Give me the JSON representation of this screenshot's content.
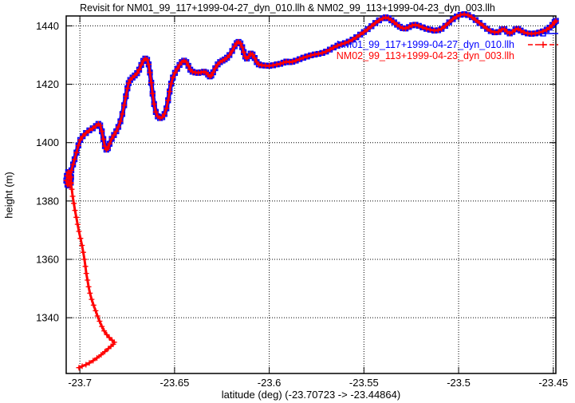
{
  "title": "Revisit for NM01_99_117+1999-04-27_dyn_010.llh & NM02_99_113+1999-04-23_dyn_003.llh",
  "axes": {
    "xlabel": "latitude (deg) (-23.70723 -> -23.44864)",
    "ylabel": "height (m)"
  },
  "legend": {
    "entries": [
      {
        "label": "NM01_99_117+1999-04-27_dyn_010.llh",
        "color": "#0000ff",
        "marker": "square",
        "line": "solid"
      },
      {
        "label": "NM02_99_113+1999-04-23_dyn_003.llh",
        "color": "#ff0000",
        "marker": "plus",
        "line": "dashed"
      }
    ]
  },
  "colors": {
    "series1": "#0000ff",
    "series2": "#ff0000",
    "grid": "#000000",
    "background": "#ffffff"
  },
  "chart_data": {
    "type": "line",
    "title": "Revisit for NM01_99_117+1999-04-27_dyn_010.llh & NM02_99_113+1999-04-23_dyn_003.llh",
    "xlabel": "latitude (deg) (-23.70723 -> -23.44864)",
    "ylabel": "height (m)",
    "xlim": [
      -23.70723,
      -23.44864
    ],
    "ylim": [
      1320.9,
      1443.4
    ],
    "xticks": [
      -23.7,
      -23.65,
      -23.6,
      -23.55,
      -23.5,
      -23.45
    ],
    "xtick_labels": [
      "-23.7",
      "-23.65",
      "-23.6",
      "-23.55",
      "-23.5",
      "-23.45"
    ],
    "yticks": [
      1340,
      1360,
      1380,
      1400,
      1420,
      1440
    ],
    "ytick_labels": [
      "1340",
      "1360",
      "1380",
      "1400",
      "1420",
      "1440"
    ],
    "grid": true,
    "legend_position": "top-right-inside",
    "paths": {
      "main": [
        [
          -23.7072,
          1387.0
        ],
        [
          -23.7066,
          1385.6
        ],
        [
          -23.7056,
          1385.3
        ],
        [
          -23.7048,
          1386.3
        ],
        [
          -23.7046,
          1388.2
        ],
        [
          -23.7052,
          1389.7
        ],
        [
          -23.7062,
          1389.9
        ],
        [
          -23.7069,
          1388.6
        ],
        [
          -23.7058,
          1387.6
        ],
        [
          -23.7045,
          1390.5
        ],
        [
          -23.7036,
          1392.5
        ],
        [
          -23.7028,
          1394.3
        ],
        [
          -23.7018,
          1396.6
        ],
        [
          -23.7008,
          1399.0
        ],
        [
          -23.6998,
          1400.9
        ],
        [
          -23.6985,
          1402.2
        ],
        [
          -23.6968,
          1403.3
        ],
        [
          -23.695,
          1404.2
        ],
        [
          -23.6932,
          1404.9
        ],
        [
          -23.6915,
          1405.7
        ],
        [
          -23.6902,
          1406.4
        ],
        [
          -23.6893,
          1405.9
        ],
        [
          -23.6884,
          1403.9
        ],
        [
          -23.6876,
          1401.2
        ],
        [
          -23.6868,
          1398.8
        ],
        [
          -23.686,
          1397.6
        ],
        [
          -23.6852,
          1398.1
        ],
        [
          -23.6843,
          1399.6
        ],
        [
          -23.6832,
          1401.3
        ],
        [
          -23.682,
          1402.6
        ],
        [
          -23.6808,
          1403.9
        ],
        [
          -23.6797,
          1405.4
        ],
        [
          -23.6786,
          1407.3
        ],
        [
          -23.6776,
          1409.8
        ],
        [
          -23.6766,
          1412.8
        ],
        [
          -23.6757,
          1415.9
        ],
        [
          -23.6749,
          1418.6
        ],
        [
          -23.6742,
          1420.4
        ],
        [
          -23.6734,
          1421.5
        ],
        [
          -23.6722,
          1422.3
        ],
        [
          -23.671,
          1423.0
        ],
        [
          -23.6698,
          1423.8
        ],
        [
          -23.6687,
          1425.0
        ],
        [
          -23.6676,
          1426.6
        ],
        [
          -23.6665,
          1428.0
        ],
        [
          -23.6655,
          1428.8
        ],
        [
          -23.6645,
          1428.4
        ],
        [
          -23.6637,
          1426.8
        ],
        [
          -23.663,
          1424.0
        ],
        [
          -23.6623,
          1420.5
        ],
        [
          -23.6616,
          1416.8
        ],
        [
          -23.6608,
          1413.2
        ],
        [
          -23.6599,
          1410.5
        ],
        [
          -23.6589,
          1409.0
        ],
        [
          -23.6577,
          1408.4
        ],
        [
          -23.6565,
          1408.7
        ],
        [
          -23.6553,
          1409.8
        ],
        [
          -23.6543,
          1411.7
        ],
        [
          -23.6534,
          1414.5
        ],
        [
          -23.6526,
          1417.5
        ],
        [
          -23.6518,
          1420.2
        ],
        [
          -23.6509,
          1422.3
        ],
        [
          -23.6498,
          1423.9
        ],
        [
          -23.6486,
          1425.3
        ],
        [
          -23.6474,
          1426.6
        ],
        [
          -23.6462,
          1427.6
        ],
        [
          -23.645,
          1428.1
        ],
        [
          -23.6438,
          1427.6
        ],
        [
          -23.6427,
          1426.3
        ],
        [
          -23.6417,
          1425.0
        ],
        [
          -23.6405,
          1424.3
        ],
        [
          -23.639,
          1424.0
        ],
        [
          -23.6375,
          1423.9
        ],
        [
          -23.636,
          1424.1
        ],
        [
          -23.6345,
          1424.3
        ],
        [
          -23.6333,
          1424.0
        ],
        [
          -23.6323,
          1423.3
        ],
        [
          -23.6314,
          1422.7
        ],
        [
          -23.6306,
          1423.0
        ],
        [
          -23.6296,
          1424.1
        ],
        [
          -23.6285,
          1425.5
        ],
        [
          -23.6272,
          1426.8
        ],
        [
          -23.626,
          1427.6
        ],
        [
          -23.6247,
          1428.1
        ],
        [
          -23.6235,
          1428.5
        ],
        [
          -23.6223,
          1429.1
        ],
        [
          -23.621,
          1430.0
        ],
        [
          -23.6196,
          1431.4
        ],
        [
          -23.6183,
          1433.0
        ],
        [
          -23.6172,
          1434.1
        ],
        [
          -23.6162,
          1434.5
        ],
        [
          -23.6152,
          1434.0
        ],
        [
          -23.6143,
          1432.7
        ],
        [
          -23.6135,
          1431.0
        ],
        [
          -23.6127,
          1429.5
        ],
        [
          -23.6118,
          1428.8
        ],
        [
          -23.6108,
          1429.6
        ],
        [
          -23.6098,
          1430.5
        ],
        [
          -23.6088,
          1430.2
        ],
        [
          -23.6077,
          1429.0
        ],
        [
          -23.6066,
          1427.6
        ],
        [
          -23.6055,
          1426.8
        ],
        [
          -23.604,
          1426.5
        ],
        [
          -23.602,
          1426.4
        ],
        [
          -23.6,
          1426.3
        ],
        [
          -23.598,
          1426.5
        ],
        [
          -23.596,
          1426.8
        ],
        [
          -23.5942,
          1427.0
        ],
        [
          -23.5925,
          1427.4
        ],
        [
          -23.591,
          1427.8
        ],
        [
          -23.5893,
          1427.6
        ],
        [
          -23.5878,
          1427.7
        ],
        [
          -23.586,
          1428.1
        ],
        [
          -23.584,
          1428.6
        ],
        [
          -23.582,
          1429.1
        ],
        [
          -23.58,
          1429.5
        ],
        [
          -23.578,
          1429.9
        ],
        [
          -23.576,
          1430.2
        ],
        [
          -23.574,
          1430.4
        ],
        [
          -23.572,
          1430.7
        ],
        [
          -23.57,
          1431.2
        ],
        [
          -23.568,
          1431.9
        ],
        [
          -23.566,
          1432.6
        ],
        [
          -23.564,
          1433.2
        ],
        [
          -23.562,
          1433.7
        ],
        [
          -23.56,
          1434.1
        ],
        [
          -23.558,
          1434.6
        ],
        [
          -23.556,
          1435.3
        ],
        [
          -23.554,
          1436.1
        ],
        [
          -23.552,
          1437.0
        ],
        [
          -23.55,
          1437.9
        ],
        [
          -23.548,
          1438.9
        ],
        [
          -23.546,
          1439.9
        ],
        [
          -23.544,
          1441.0
        ],
        [
          -23.542,
          1441.9
        ],
        [
          -23.54,
          1442.6
        ],
        [
          -23.5385,
          1442.9
        ],
        [
          -23.537,
          1442.6
        ],
        [
          -23.5355,
          1441.9
        ],
        [
          -23.534,
          1441.2
        ],
        [
          -23.5325,
          1440.4
        ],
        [
          -23.531,
          1439.7
        ],
        [
          -23.5295,
          1439.2
        ],
        [
          -23.528,
          1439.1
        ],
        [
          -23.5262,
          1439.6
        ],
        [
          -23.5245,
          1440.2
        ],
        [
          -23.5228,
          1440.4
        ],
        [
          -23.521,
          1440.0
        ],
        [
          -23.519,
          1439.5
        ],
        [
          -23.517,
          1439.0
        ],
        [
          -23.515,
          1438.7
        ],
        [
          -23.5128,
          1438.4
        ],
        [
          -23.5108,
          1438.5
        ],
        [
          -23.509,
          1439.0
        ],
        [
          -23.507,
          1440.0
        ],
        [
          -23.505,
          1441.2
        ],
        [
          -23.503,
          1442.3
        ],
        [
          -23.501,
          1443.2
        ],
        [
          -23.499,
          1443.8
        ],
        [
          -23.497,
          1444.0
        ],
        [
          -23.495,
          1443.7
        ],
        [
          -23.493,
          1443.0
        ],
        [
          -23.491,
          1442.0
        ],
        [
          -23.489,
          1441.0
        ],
        [
          -23.487,
          1440.0
        ],
        [
          -23.485,
          1439.0
        ],
        [
          -23.483,
          1438.2
        ],
        [
          -23.481,
          1437.8
        ],
        [
          -23.479,
          1437.9
        ],
        [
          -23.4772,
          1438.8
        ],
        [
          -23.4758,
          1438.9
        ],
        [
          -23.4744,
          1438.0
        ],
        [
          -23.473,
          1437.4
        ],
        [
          -23.4716,
          1437.9
        ],
        [
          -23.47,
          1438.8
        ],
        [
          -23.4686,
          1439.0
        ],
        [
          -23.4672,
          1438.4
        ],
        [
          -23.4655,
          1437.8
        ],
        [
          -23.4635,
          1437.4
        ],
        [
          -23.4615,
          1437.3
        ],
        [
          -23.4595,
          1437.4
        ],
        [
          -23.4575,
          1437.7
        ],
        [
          -23.4555,
          1438.1
        ],
        [
          -23.4535,
          1438.7
        ],
        [
          -23.452,
          1439.4
        ],
        [
          -23.4505,
          1440.3
        ],
        [
          -23.4493,
          1441.3
        ],
        [
          -23.4486,
          1441.7
        ]
      ],
      "red_tail": [
        [
          -23.7005,
          1322.9
        ],
        [
          -23.6988,
          1323.4
        ],
        [
          -23.6968,
          1323.9
        ],
        [
          -23.695,
          1324.5
        ],
        [
          -23.693,
          1325.3
        ],
        [
          -23.691,
          1326.2
        ],
        [
          -23.6888,
          1327.3
        ],
        [
          -23.6868,
          1328.4
        ],
        [
          -23.685,
          1329.4
        ],
        [
          -23.6836,
          1330.2
        ],
        [
          -23.6824,
          1330.9
        ],
        [
          -23.6818,
          1331.6
        ],
        [
          -23.683,
          1332.3
        ],
        [
          -23.6845,
          1333.2
        ],
        [
          -23.6858,
          1334.2
        ],
        [
          -23.6872,
          1335.5
        ],
        [
          -23.6884,
          1337.0
        ],
        [
          -23.6896,
          1338.8
        ],
        [
          -23.6907,
          1340.6
        ],
        [
          -23.6917,
          1342.4
        ],
        [
          -23.6928,
          1344.3
        ],
        [
          -23.6938,
          1346.3
        ],
        [
          -23.6947,
          1348.4
        ],
        [
          -23.6954,
          1350.6
        ],
        [
          -23.696,
          1352.9
        ],
        [
          -23.6966,
          1355.2
        ],
        [
          -23.6971,
          1357.6
        ],
        [
          -23.6976,
          1360.0
        ],
        [
          -23.6982,
          1362.4
        ],
        [
          -23.6989,
          1364.8
        ],
        [
          -23.6997,
          1367.2
        ],
        [
          -23.7005,
          1369.6
        ],
        [
          -23.7012,
          1372.0
        ],
        [
          -23.7019,
          1374.4
        ],
        [
          -23.7026,
          1376.8
        ],
        [
          -23.7032,
          1379.2
        ],
        [
          -23.7038,
          1381.6
        ],
        [
          -23.7043,
          1384.0
        ],
        [
          -23.7047,
          1386.0
        ]
      ]
    },
    "series": [
      {
        "name": "NM01_99_117+1999-04-27_dyn_010.llh",
        "color": "#0000ff",
        "marker": "square",
        "line": "solid",
        "points_from": [
          "main"
        ]
      },
      {
        "name": "NM02_99_113+1999-04-23_dyn_003.llh",
        "color": "#ff0000",
        "marker": "plus",
        "line": "dashed",
        "points_from": [
          "red_tail",
          "main"
        ]
      }
    ]
  }
}
